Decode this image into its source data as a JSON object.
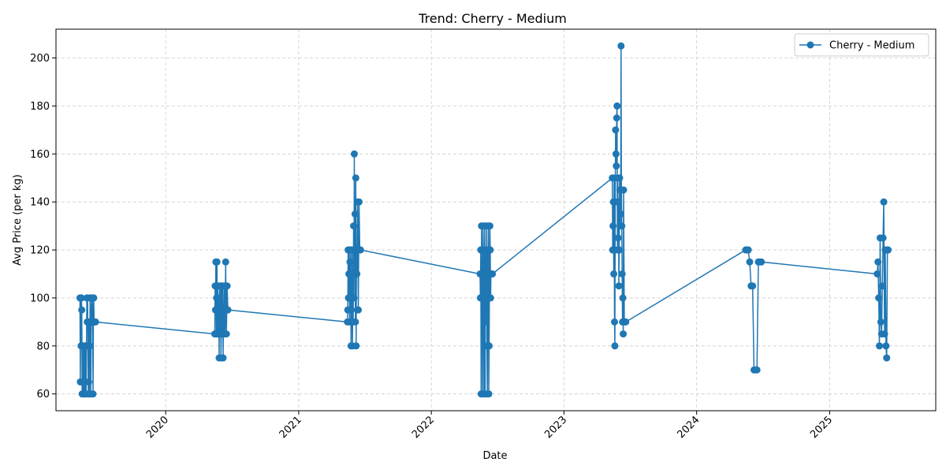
{
  "chart_data": {
    "type": "line",
    "title": "Trend: Cherry - Medium",
    "xlabel": "Date",
    "ylabel": "Avg Price (per kg)",
    "xlim": [
      "2019-03-05",
      "2025-10-20"
    ],
    "ylim": [
      53,
      212
    ],
    "x_ticks": [
      "2020-01-01",
      "2021-01-01",
      "2022-01-01",
      "2023-01-01",
      "2024-01-01",
      "2025-01-01"
    ],
    "x_tick_labels": [
      "2020",
      "2021",
      "2022",
      "2023",
      "2024",
      "2025"
    ],
    "y_ticks": [
      60,
      80,
      100,
      120,
      140,
      160,
      180,
      200
    ],
    "y_tick_labels": [
      "60",
      "80",
      "100",
      "120",
      "140",
      "160",
      "180",
      "200"
    ],
    "grid": true,
    "legend_position": "top-right",
    "color": "#1f77b4",
    "series": [
      {
        "name": "Cherry - Medium",
        "x": [
          "2019-05-10",
          "2019-05-11",
          "2019-05-12",
          "2019-05-13",
          "2019-05-14",
          "2019-05-15",
          "2019-05-16",
          "2019-05-17",
          "2019-05-18",
          "2019-05-19",
          "2019-05-20",
          "2019-05-21",
          "2019-05-22",
          "2019-05-23",
          "2019-05-24",
          "2019-05-25",
          "2019-05-26",
          "2019-05-27",
          "2019-05-28",
          "2019-05-29",
          "2019-05-30",
          "2019-05-31",
          "2019-06-01",
          "2019-06-02",
          "2019-06-03",
          "2019-06-04",
          "2019-06-05",
          "2019-06-06",
          "2019-06-07",
          "2019-06-08",
          "2019-06-09",
          "2019-06-10",
          "2019-06-11",
          "2019-06-12",
          "2019-06-13",
          "2019-06-14",
          "2019-06-15",
          "2019-06-16",
          "2019-06-17",
          "2019-06-18",
          "2019-06-20",
          "2019-06-22",
          "2020-05-15",
          "2020-05-16",
          "2020-05-17",
          "2020-05-18",
          "2020-05-19",
          "2020-05-20",
          "2020-05-21",
          "2020-05-22",
          "2020-05-23",
          "2020-05-24",
          "2020-05-25",
          "2020-05-26",
          "2020-05-27",
          "2020-05-28",
          "2020-05-29",
          "2020-05-30",
          "2020-05-31",
          "2020-06-01",
          "2020-06-02",
          "2020-06-03",
          "2020-06-04",
          "2020-06-05",
          "2020-06-06",
          "2020-06-07",
          "2020-06-08",
          "2020-06-09",
          "2020-06-10",
          "2020-06-12",
          "2020-06-14",
          "2020-06-15",
          "2020-06-16",
          "2020-06-18",
          "2020-06-20",
          "2021-05-15",
          "2021-05-16",
          "2021-05-17",
          "2021-05-18",
          "2021-05-19",
          "2021-05-20",
          "2021-05-21",
          "2021-05-22",
          "2021-05-23",
          "2021-05-24",
          "2021-05-25",
          "2021-05-26",
          "2021-05-27",
          "2021-05-28",
          "2021-05-29",
          "2021-05-30",
          "2021-05-31",
          "2021-06-01",
          "2021-06-02",
          "2021-06-03",
          "2021-06-04",
          "2021-06-05",
          "2021-06-06",
          "2021-06-07",
          "2021-06-08",
          "2021-06-09",
          "2021-06-10",
          "2021-06-12",
          "2021-06-14",
          "2021-06-15",
          "2021-06-16",
          "2021-06-18",
          "2021-06-20",
          "2022-05-15",
          "2022-05-16",
          "2022-05-17",
          "2022-05-18",
          "2022-05-19",
          "2022-05-20",
          "2022-05-21",
          "2022-05-22",
          "2022-05-23",
          "2022-05-24",
          "2022-05-25",
          "2022-05-26",
          "2022-05-27",
          "2022-05-28",
          "2022-05-29",
          "2022-05-30",
          "2022-05-31",
          "2022-06-01",
          "2022-06-02",
          "2022-06-03",
          "2022-06-04",
          "2022-06-05",
          "2022-06-06",
          "2022-06-07",
          "2022-06-08",
          "2022-06-09",
          "2022-06-10",
          "2022-06-11",
          "2022-06-12",
          "2022-06-13",
          "2022-06-14",
          "2022-06-16",
          "2022-06-18",
          "2023-05-14",
          "2023-05-15",
          "2023-05-16",
          "2023-05-17",
          "2023-05-18",
          "2023-05-19",
          "2023-05-20",
          "2023-05-21",
          "2023-05-22",
          "2023-05-23",
          "2023-05-24",
          "2023-05-25",
          "2023-05-26",
          "2023-05-27",
          "2023-05-28",
          "2023-05-29",
          "2023-05-30",
          "2023-05-31",
          "2023-06-01",
          "2023-06-02",
          "2023-06-03",
          "2023-06-04",
          "2023-06-05",
          "2023-06-06",
          "2023-06-07",
          "2023-06-08",
          "2023-06-09",
          "2023-06-10",
          "2023-06-11",
          "2023-06-12",
          "2023-06-13",
          "2023-06-14",
          "2023-06-16",
          "2023-06-18",
          "2023-06-20",
          "2024-05-15",
          "2024-05-18",
          "2024-05-22",
          "2024-05-26",
          "2024-05-30",
          "2024-06-03",
          "2024-06-07",
          "2024-06-11",
          "2024-06-15",
          "2024-06-19",
          "2024-06-23",
          "2024-06-27",
          "2025-05-12",
          "2025-05-14",
          "2025-05-16",
          "2025-05-18",
          "2025-05-20",
          "2025-05-22",
          "2025-05-24",
          "2025-05-26",
          "2025-05-28",
          "2025-05-30",
          "2025-06-01",
          "2025-06-03",
          "2025-06-05",
          "2025-06-07",
          "2025-06-09",
          "2025-06-11"
        ],
        "y": [
          100,
          65,
          100,
          80,
          100,
          95,
          60,
          80,
          65,
          60,
          80,
          65,
          60,
          80,
          60,
          65,
          80,
          60,
          80,
          100,
          90,
          100,
          80,
          60,
          65,
          90,
          60,
          80,
          100,
          90,
          60,
          90,
          100,
          90,
          100,
          90,
          60,
          90,
          100,
          90,
          90,
          90,
          85,
          105,
          95,
          115,
          85,
          100,
          115,
          85,
          105,
          95,
          85,
          100,
          75,
          105,
          85,
          95,
          105,
          75,
          85,
          105,
          95,
          85,
          105,
          75,
          95,
          85,
          105,
          85,
          115,
          95,
          85,
          105,
          95,
          90,
          95,
          120,
          100,
          110,
          120,
          90,
          115,
          100,
          120,
          80,
          95,
          100,
          120,
          80,
          110,
          90,
          130,
          100,
          160,
          120,
          135,
          90,
          150,
          80,
          120,
          110,
          140,
          95,
          120,
          140,
          120,
          120,
          110,
          100,
          120,
          60,
          130,
          100,
          110,
          60,
          130,
          120,
          100,
          60,
          110,
          130,
          60,
          120,
          100,
          90,
          130,
          80,
          60,
          120,
          110,
          130,
          60,
          80,
          110,
          130,
          120,
          100,
          110,
          110,
          110,
          150,
          120,
          130,
          140,
          110,
          150,
          90,
          80,
          140,
          170,
          160,
          155,
          175,
          180,
          120,
          150,
          125,
          140,
          105,
          120,
          150,
          145,
          130,
          135,
          205,
          145,
          130,
          110,
          90,
          100,
          85,
          145,
          90,
          90,
          90,
          120,
          120,
          120,
          115,
          105,
          105,
          70,
          70,
          70,
          115,
          115,
          115,
          110,
          115,
          100,
          80,
          125,
          90,
          85,
          105,
          125,
          140,
          85,
          120,
          80,
          75,
          120,
          120
        ]
      }
    ]
  }
}
